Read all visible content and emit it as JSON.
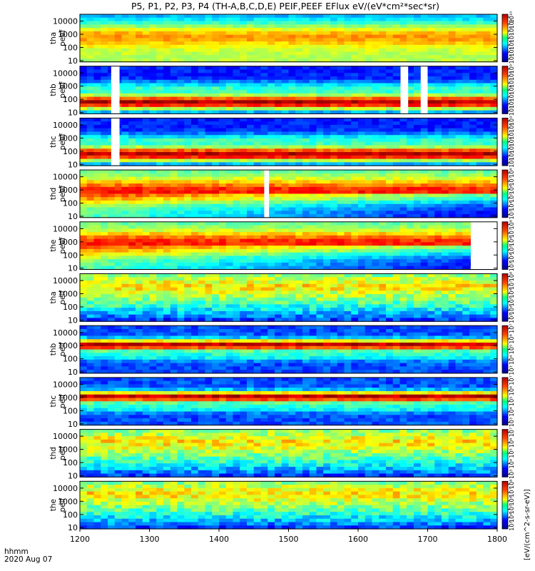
{
  "chart_data": {
    "type": "heatmap",
    "title": "P5, P1, P2, P3, P4 (TH-A,B,C,D,E) PEIF,PEEF EFlux eV/(eV*cm²*sec*sr)",
    "xlabel_lines": [
      "hhmm",
      "2020 Aug 07"
    ],
    "x_range": [
      1200,
      1800
    ],
    "x_ticks": [
      "1200",
      "1300",
      "1400",
      "1500",
      "1600",
      "1700",
      "1800"
    ],
    "y_ticks": [
      "10",
      "100",
      "1000",
      "10000"
    ],
    "colorbar_label": "[eV/(cm^2-s-sr-eV)]",
    "panels": [
      {
        "probe": "tha",
        "product": "peef",
        "cbar_ticks": [
          "10⁴",
          "10⁵",
          "10⁶",
          "10⁷",
          "10⁸",
          "10⁹",
          "10¹⁰"
        ],
        "gaps": [],
        "profile": "hot"
      },
      {
        "probe": "thb",
        "product": "peef",
        "cbar_ticks": [
          "10³",
          "10⁴",
          "10⁵",
          "10⁶",
          "10⁷",
          "10⁸",
          "10⁹"
        ],
        "gaps": [
          [
            1245,
            1257
          ],
          [
            1661,
            1672
          ],
          [
            1690,
            1700
          ]
        ],
        "profile": "cold"
      },
      {
        "probe": "thc",
        "product": "peef",
        "cbar_ticks": [
          "10³",
          "10⁴",
          "10⁵",
          "10⁶",
          "10⁷",
          "10⁸",
          "10⁹"
        ],
        "gaps": [
          [
            1245,
            1257
          ]
        ],
        "profile": "cold"
      },
      {
        "probe": "thd",
        "product": "peef",
        "cbar_ticks": [
          "10³",
          "10⁴",
          "10⁵",
          "10⁶",
          "10⁷",
          "10⁸"
        ],
        "gaps": [
          [
            1465,
            1472
          ]
        ],
        "profile": "warm"
      },
      {
        "probe": "the",
        "product": "peef",
        "cbar_ticks": [
          "10³",
          "10⁴",
          "10⁵",
          "10⁶",
          "10⁷",
          "10⁸"
        ],
        "gaps": [
          [
            1762,
            1800
          ]
        ],
        "profile": "warm"
      },
      {
        "probe": "tha",
        "product": "peif",
        "cbar_ticks": [
          "10³",
          "10⁴",
          "10⁵",
          "10⁶",
          "10⁷",
          "10⁸"
        ],
        "gaps": [],
        "profile": "ion"
      },
      {
        "probe": "thb",
        "product": "peif",
        "cbar_ticks": [
          "10³",
          "10⁴",
          "10⁵",
          "10⁶",
          "10⁷"
        ],
        "gaps": [],
        "profile": "ionband"
      },
      {
        "probe": "thc",
        "product": "peif",
        "cbar_ticks": [
          "10³",
          "10⁴",
          "10⁵",
          "10⁶",
          "10⁷"
        ],
        "gaps": [],
        "profile": "ionband"
      },
      {
        "probe": "thd",
        "product": "peif",
        "cbar_ticks": [
          "10³",
          "10⁴",
          "10⁵",
          "10⁶",
          "10⁷"
        ],
        "gaps": [],
        "profile": "ion"
      },
      {
        "probe": "the",
        "product": "peif",
        "cbar_ticks": [
          "10³",
          "10⁴",
          "10⁵",
          "10⁶",
          "10⁷",
          "10⁸"
        ],
        "gaps": [],
        "profile": "ion"
      }
    ]
  }
}
